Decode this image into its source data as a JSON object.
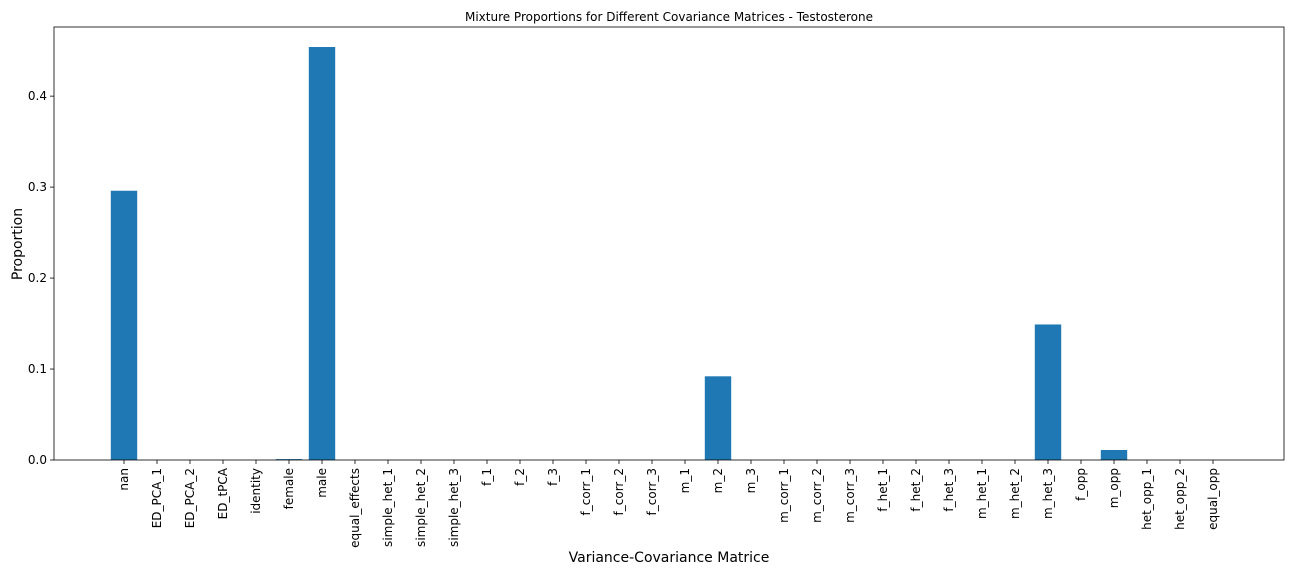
{
  "chart_data": {
    "type": "bar",
    "title": "Mixture Proportions for Different Covariance Matrices - Testosterone",
    "xlabel": "Variance-Covariance Matrice",
    "ylabel": "Proportion",
    "ylim": [
      0,
      0.476
    ],
    "yticks": [
      0.0,
      0.1,
      0.2,
      0.3,
      0.4
    ],
    "ytick_labels": [
      "0.0",
      "0.1",
      "0.2",
      "0.3",
      "0.4"
    ],
    "grid": false,
    "bar_color": "#1f77b4",
    "categories": [
      "nan",
      "ED_PCA_1",
      "ED_PCA_2",
      "ED_tPCA",
      "identity",
      "female",
      "male",
      "equal_effects",
      "simple_het_1",
      "simple_het_2",
      "simple_het_3",
      "f_1",
      "f_2",
      "f_3",
      "f_corr_1",
      "f_corr_2",
      "f_corr_3",
      "m_1",
      "m_2",
      "m_3",
      "m_corr_1",
      "m_corr_2",
      "m_corr_3",
      "f_het_1",
      "f_het_2",
      "f_het_3",
      "m_het_1",
      "m_het_2",
      "m_het_3",
      "f_opp",
      "m_opp",
      "het_opp_1",
      "het_opp_2",
      "equal_opp"
    ],
    "values": [
      0.296,
      0,
      0,
      0,
      0,
      0.001,
      0.454,
      0,
      0,
      0,
      0,
      0,
      0,
      0,
      0,
      0,
      0,
      0,
      0.092,
      0,
      0,
      0,
      0,
      0,
      0,
      0,
      0,
      0,
      0.149,
      0,
      0.011,
      0,
      0,
      0
    ]
  }
}
